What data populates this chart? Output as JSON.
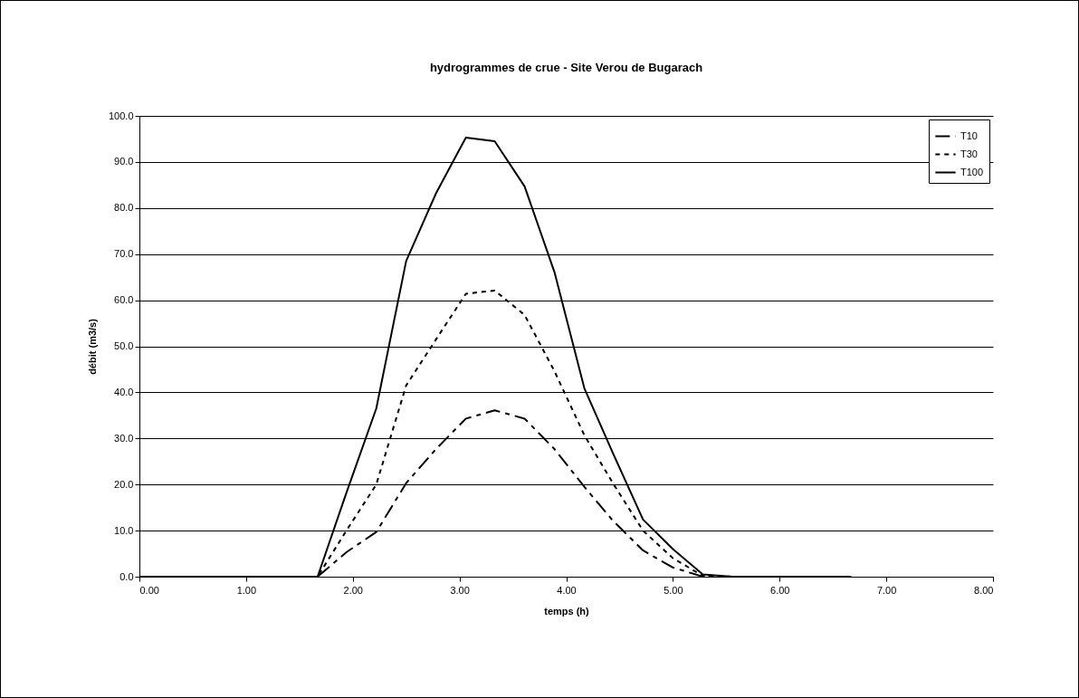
{
  "chart_data": {
    "type": "line",
    "title": "hydrogrammes de crue - Site Verou de Bugarach",
    "xlabel": "temps (h)",
    "ylabel": "débit (m3/s)",
    "x": [
      0,
      0.28,
      0.56,
      0.83,
      1.11,
      1.39,
      1.67,
      1.94,
      2.22,
      2.5,
      2.78,
      3.06,
      3.33,
      3.61,
      3.89,
      4.17,
      4.44,
      4.72,
      5.0,
      5.28,
      5.56,
      5.83,
      6.11,
      6.39,
      6.67
    ],
    "series": [
      {
        "name": "T10",
        "color": "#000000",
        "line_style": "dashed",
        "values": [
          0,
          0,
          0,
          0,
          0,
          0,
          0,
          5.3,
          9.7,
          20.3,
          27.7,
          34.3,
          36.1,
          34.3,
          27.7,
          19.5,
          12.1,
          5.7,
          2.0,
          0,
          0,
          0,
          0,
          0,
          0
        ]
      },
      {
        "name": "T30",
        "color": "#000000",
        "line_style": "dotted",
        "values": [
          0,
          0,
          0,
          0,
          0,
          0,
          0,
          10.0,
          20.0,
          41.5,
          51.5,
          61.4,
          62.1,
          56.8,
          44.6,
          30.7,
          20.2,
          10.0,
          4.0,
          0.2,
          0,
          0,
          0,
          0,
          0
        ]
      },
      {
        "name": "T100",
        "color": "#000000",
        "line_style": "solid",
        "values": [
          0,
          0,
          0,
          0,
          0,
          0,
          0,
          18.2,
          36.5,
          68.5,
          83.2,
          95.3,
          94.5,
          84.7,
          66.1,
          40.9,
          26.7,
          12.4,
          6.0,
          0.5,
          0,
          0,
          0,
          0,
          0
        ]
      }
    ],
    "xlim": [
      0,
      8
    ],
    "xticks": [
      {
        "value": 0,
        "label": "0.00"
      },
      {
        "value": 1,
        "label": "1.00"
      },
      {
        "value": 2,
        "label": "2.00"
      },
      {
        "value": 3,
        "label": "3.00"
      },
      {
        "value": 4,
        "label": "4.00"
      },
      {
        "value": 5,
        "label": "5.00"
      },
      {
        "value": 6,
        "label": "6.00"
      },
      {
        "value": 7,
        "label": "7.00"
      },
      {
        "value": 8,
        "label": "8.00"
      }
    ],
    "ylim": [
      0,
      100
    ],
    "yticks": [
      {
        "value": 0,
        "label": "0.0"
      },
      {
        "value": 10,
        "label": "10.0"
      },
      {
        "value": 20,
        "label": "20.0"
      },
      {
        "value": 30,
        "label": "30.0"
      },
      {
        "value": 40,
        "label": "40.0"
      },
      {
        "value": 50,
        "label": "50.0"
      },
      {
        "value": 60,
        "label": "60.0"
      },
      {
        "value": 70,
        "label": "70.0"
      },
      {
        "value": 80,
        "label": "80.0"
      },
      {
        "value": 90,
        "label": "90.0"
      },
      {
        "value": 100,
        "label": "100.0"
      }
    ],
    "grid": "y",
    "legend": "top right"
  }
}
